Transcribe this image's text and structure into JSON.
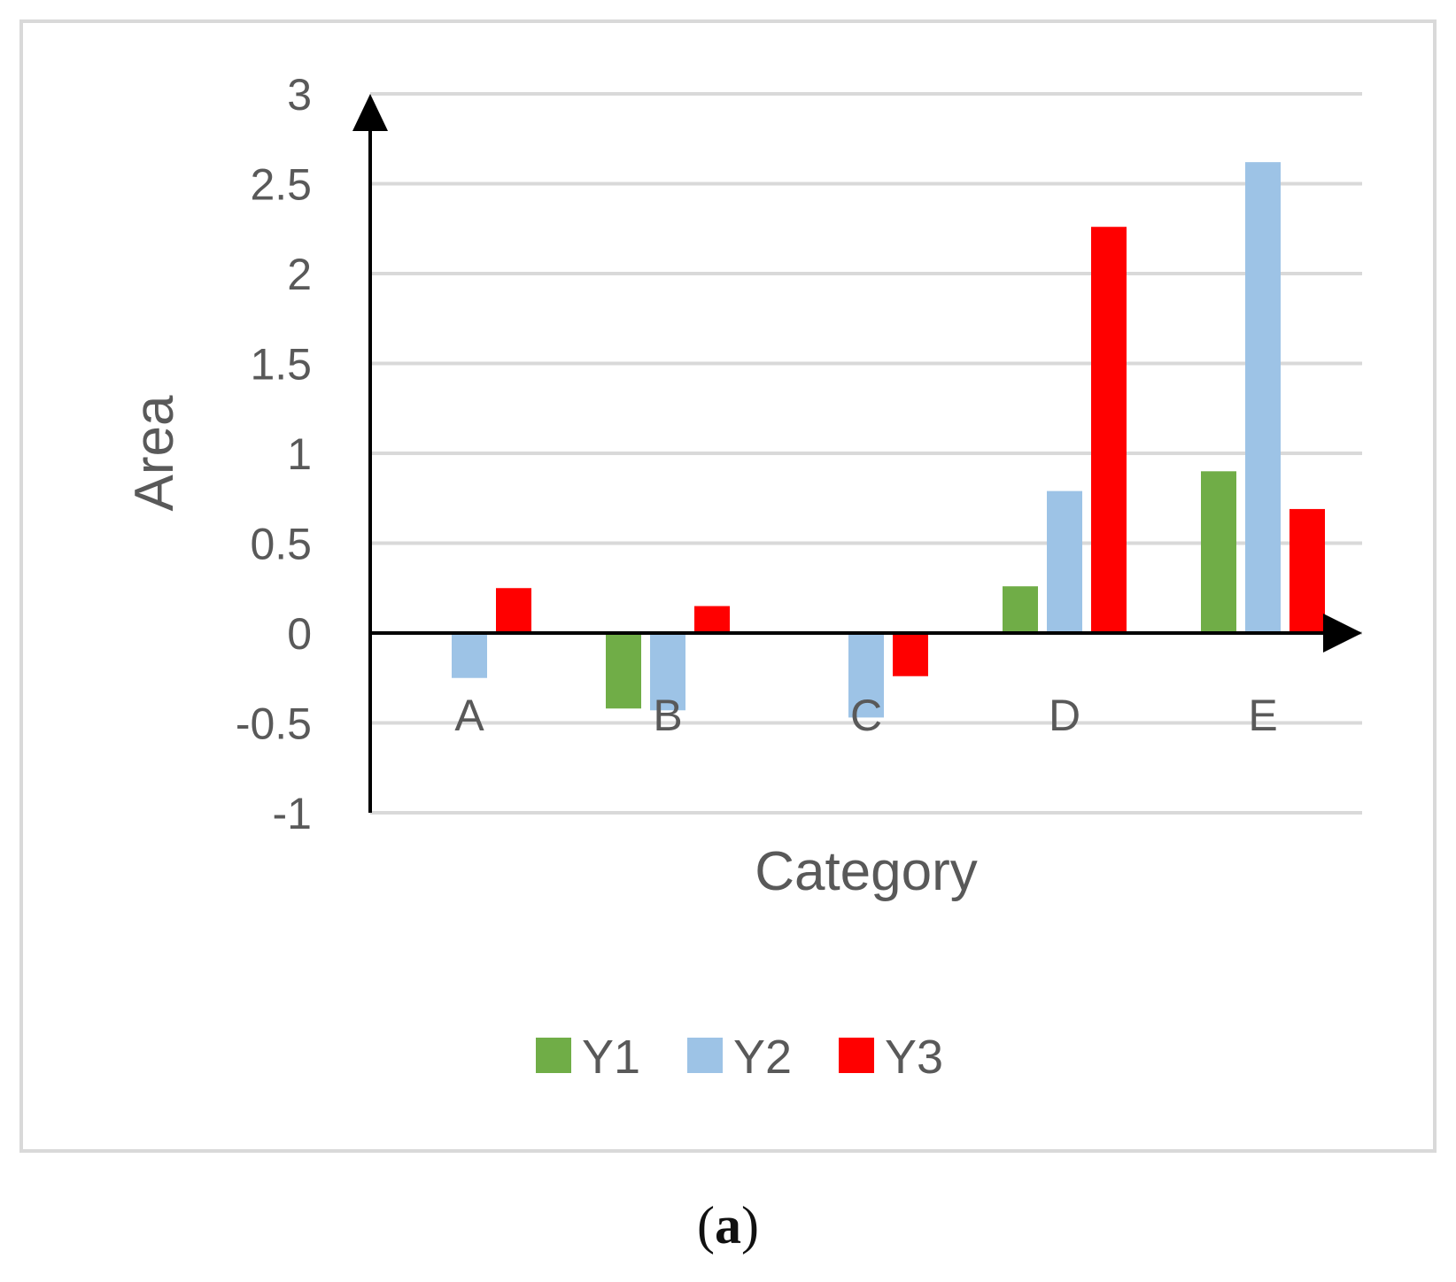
{
  "chart_data": {
    "type": "bar",
    "categories": [
      "A",
      "B",
      "C",
      "D",
      "E"
    ],
    "series": [
      {
        "name": "Y1",
        "color": "#70ad47",
        "values": [
          0,
          -0.42,
          0,
          0.26,
          0.9
        ]
      },
      {
        "name": "Y2",
        "color": "#9dc3e6",
        "values": [
          -0.25,
          -0.43,
          -0.47,
          0.79,
          2.62
        ]
      },
      {
        "name": "Y3",
        "color": "#ff0000",
        "values": [
          0.25,
          0.15,
          -0.24,
          2.26,
          0.69
        ]
      }
    ],
    "xlabel": "Category",
    "ylabel": "Area",
    "ylim": [
      -1,
      3
    ],
    "yticks": [
      "3",
      "2.5",
      "2",
      "1.5",
      "1",
      "0.5",
      "0",
      "-0.5",
      "-1"
    ],
    "grid": true,
    "legend_position": "bottom"
  },
  "caption": {
    "open": "(",
    "letter": "a",
    "close": ")"
  }
}
